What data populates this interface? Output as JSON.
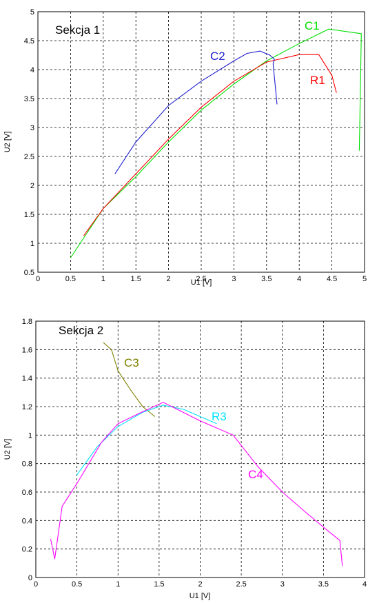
{
  "chart_data": [
    {
      "type": "line",
      "title": "Sekcja 1",
      "xlabel": "U1 [V]",
      "ylabel": "U2 [V]",
      "xlim": [
        0,
        5
      ],
      "ylim": [
        0.5,
        5
      ],
      "xticks": [
        "0",
        "0.5",
        "1",
        "1.5",
        "2",
        "2.5",
        "3",
        "3.5",
        "4",
        "4.5",
        "5"
      ],
      "yticks": [
        "0.5",
        "1",
        "1.5",
        "2",
        "2.5",
        "3",
        "3.5",
        "4",
        "4.5",
        "5"
      ],
      "grid": true,
      "series": [
        {
          "name": "C1",
          "color": "#00e000",
          "points": [
            [
              0.5,
              0.75
            ],
            [
              1.0,
              1.6
            ],
            [
              1.5,
              2.15
            ],
            [
              2.0,
              2.75
            ],
            [
              2.5,
              3.3
            ],
            [
              3.0,
              3.75
            ],
            [
              3.5,
              4.15
            ],
            [
              4.0,
              4.45
            ],
            [
              4.45,
              4.7
            ],
            [
              4.95,
              4.62
            ],
            [
              4.92,
              2.6
            ]
          ]
        },
        {
          "name": "R1",
          "color": "#ff0000",
          "points": [
            [
              0.7,
              1.13
            ],
            [
              1.0,
              1.6
            ],
            [
              1.5,
              2.2
            ],
            [
              2.0,
              2.8
            ],
            [
              2.5,
              3.35
            ],
            [
              3.0,
              3.8
            ],
            [
              3.5,
              4.13
            ],
            [
              4.0,
              4.26
            ],
            [
              4.3,
              4.26
            ],
            [
              4.5,
              3.9
            ],
            [
              4.57,
              3.6
            ]
          ]
        },
        {
          "name": "C2",
          "color": "#2020d0",
          "points": [
            [
              1.18,
              2.2
            ],
            [
              1.5,
              2.75
            ],
            [
              2.0,
              3.38
            ],
            [
              2.5,
              3.8
            ],
            [
              3.0,
              4.15
            ],
            [
              3.2,
              4.28
            ],
            [
              3.4,
              4.32
            ],
            [
              3.55,
              4.25
            ],
            [
              3.62,
              4.18
            ],
            [
              3.6,
              4.1
            ],
            [
              3.66,
              3.4
            ]
          ]
        }
      ],
      "labels": [
        "C1",
        "C2",
        "R1"
      ]
    },
    {
      "type": "line",
      "title": "Sekcja 2",
      "xlabel": "U1 [V]",
      "ylabel": "U2 [V]",
      "xlim": [
        0,
        4
      ],
      "ylim": [
        0,
        1.8
      ],
      "xticks": [
        "0",
        "0.5",
        "1",
        "1.5",
        "2",
        "2.5",
        "3",
        "3.5",
        "4"
      ],
      "yticks": [
        "0",
        "0.2",
        "0.4",
        "0.6",
        "0.8",
        "1",
        "1.2",
        "1.4",
        "1.6",
        "1.8"
      ],
      "grid": true,
      "series": [
        {
          "name": "C3",
          "color": "#808000",
          "points": [
            [
              0.82,
              1.65
            ],
            [
              0.92,
              1.6
            ],
            [
              1.0,
              1.45
            ],
            [
              1.15,
              1.32
            ],
            [
              1.3,
              1.2
            ],
            [
              1.45,
              1.13
            ]
          ]
        },
        {
          "name": "R3",
          "color": "#00e0ff",
          "points": [
            [
              0.5,
              0.72
            ],
            [
              0.75,
              0.92
            ],
            [
              1.0,
              1.06
            ],
            [
              1.3,
              1.16
            ],
            [
              1.55,
              1.21
            ],
            [
              1.8,
              1.18
            ],
            [
              2.2,
              1.08
            ]
          ]
        },
        {
          "name": "C4",
          "color": "#ff00ff",
          "points": [
            [
              0.18,
              0.27
            ],
            [
              0.23,
              0.13
            ],
            [
              0.32,
              0.5
            ],
            [
              0.5,
              0.66
            ],
            [
              0.8,
              0.95
            ],
            [
              1.0,
              1.08
            ],
            [
              1.25,
              1.15
            ],
            [
              1.55,
              1.23
            ],
            [
              2.0,
              1.1
            ],
            [
              2.4,
              1.0
            ],
            [
              2.7,
              0.78
            ],
            [
              3.0,
              0.6
            ],
            [
              3.3,
              0.45
            ],
            [
              3.55,
              0.33
            ],
            [
              3.7,
              0.26
            ],
            [
              3.73,
              0.08
            ]
          ]
        }
      ],
      "labels": [
        "C3",
        "R3",
        "C4"
      ]
    }
  ]
}
